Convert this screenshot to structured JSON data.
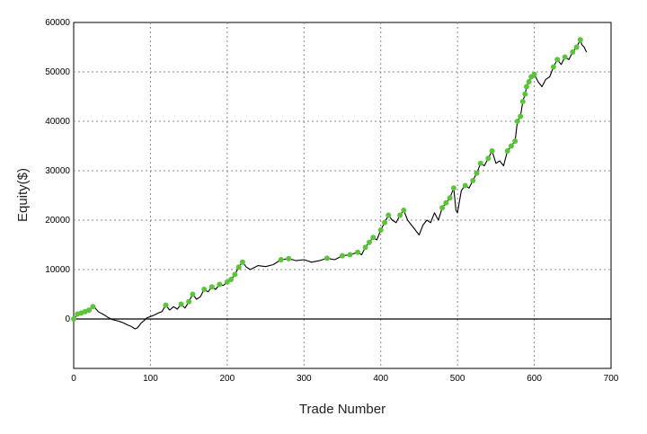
{
  "chart_data": {
    "type": "line",
    "xlabel": "Trade Number",
    "ylabel": "Equity($)",
    "xlim": [
      0,
      700
    ],
    "ylim": [
      -10000,
      60000
    ],
    "xticks": [
      0,
      100,
      200,
      300,
      400,
      500,
      600,
      700
    ],
    "yticks": [
      0,
      10000,
      20000,
      30000,
      40000,
      50000,
      60000
    ],
    "xtick_labels": [
      "0",
      "100",
      "200",
      "300",
      "400",
      "500",
      "600",
      "700"
    ],
    "ytick_labels": [
      "0",
      "10000",
      "20000",
      "30000",
      "40000",
      "50000",
      "60000"
    ],
    "grid": true,
    "zero_line": true,
    "series": [
      {
        "values": [
          [
            0,
            0
          ],
          [
            5,
            1000
          ],
          [
            10,
            1200
          ],
          [
            15,
            1500
          ],
          [
            20,
            1800
          ],
          [
            25,
            2500
          ],
          [
            28,
            2200
          ],
          [
            32,
            1500
          ],
          [
            40,
            800
          ],
          [
            45,
            300
          ],
          [
            50,
            -100
          ],
          [
            55,
            -300
          ],
          [
            60,
            -500
          ],
          [
            65,
            -800
          ],
          [
            70,
            -1200
          ],
          [
            75,
            -1500
          ],
          [
            80,
            -2000
          ],
          [
            83,
            -1800
          ],
          [
            88,
            -800
          ],
          [
            92,
            -300
          ],
          [
            95,
            200
          ],
          [
            100,
            500
          ],
          [
            105,
            800
          ],
          [
            110,
            1200
          ],
          [
            115,
            1500
          ],
          [
            120,
            2800
          ],
          [
            125,
            1800
          ],
          [
            130,
            2500
          ],
          [
            135,
            2000
          ],
          [
            140,
            3000
          ],
          [
            145,
            2200
          ],
          [
            150,
            3500
          ],
          [
            155,
            5000
          ],
          [
            160,
            4000
          ],
          [
            165,
            4500
          ],
          [
            170,
            6000
          ],
          [
            175,
            5500
          ],
          [
            180,
            6500
          ],
          [
            185,
            6000
          ],
          [
            190,
            7000
          ],
          [
            195,
            6800
          ],
          [
            200,
            7500
          ],
          [
            205,
            8000
          ],
          [
            210,
            9000
          ],
          [
            215,
            10500
          ],
          [
            220,
            11500
          ],
          [
            225,
            10500
          ],
          [
            230,
            10000
          ],
          [
            240,
            10800
          ],
          [
            250,
            10600
          ],
          [
            260,
            11000
          ],
          [
            270,
            12000
          ],
          [
            280,
            12200
          ],
          [
            290,
            11800
          ],
          [
            300,
            12000
          ],
          [
            310,
            11500
          ],
          [
            320,
            11800
          ],
          [
            330,
            12300
          ],
          [
            340,
            12000
          ],
          [
            350,
            12800
          ],
          [
            360,
            13000
          ],
          [
            370,
            13500
          ],
          [
            375,
            13000
          ],
          [
            380,
            14500
          ],
          [
            385,
            15500
          ],
          [
            390,
            16500
          ],
          [
            395,
            16000
          ],
          [
            400,
            18000
          ],
          [
            405,
            19500
          ],
          [
            410,
            21000
          ],
          [
            415,
            20000
          ],
          [
            420,
            19500
          ],
          [
            425,
            21000
          ],
          [
            430,
            22000
          ],
          [
            435,
            20000
          ],
          [
            440,
            19000
          ],
          [
            445,
            18000
          ],
          [
            450,
            17000
          ],
          [
            455,
            19000
          ],
          [
            460,
            20000
          ],
          [
            465,
            19500
          ],
          [
            470,
            21500
          ],
          [
            475,
            20000
          ],
          [
            480,
            22500
          ],
          [
            485,
            23500
          ],
          [
            490,
            24500
          ],
          [
            495,
            26500
          ],
          [
            498,
            22000
          ],
          [
            500,
            21500
          ],
          [
            505,
            26000
          ],
          [
            510,
            27000
          ],
          [
            515,
            26500
          ],
          [
            520,
            28000
          ],
          [
            525,
            29500
          ],
          [
            530,
            31500
          ],
          [
            535,
            31000
          ],
          [
            540,
            32500
          ],
          [
            545,
            34000
          ],
          [
            550,
            31500
          ],
          [
            555,
            32000
          ],
          [
            560,
            31000
          ],
          [
            565,
            34000
          ],
          [
            570,
            35000
          ],
          [
            575,
            36000
          ],
          [
            578,
            40000
          ],
          [
            582,
            41000
          ],
          [
            585,
            44000
          ],
          [
            588,
            45500
          ],
          [
            590,
            47000
          ],
          [
            593,
            48000
          ],
          [
            596,
            49000
          ],
          [
            600,
            49500
          ],
          [
            605,
            48000
          ],
          [
            610,
            47000
          ],
          [
            615,
            48500
          ],
          [
            620,
            49000
          ],
          [
            625,
            51000
          ],
          [
            630,
            52500
          ],
          [
            635,
            51500
          ],
          [
            640,
            53000
          ],
          [
            645,
            52500
          ],
          [
            650,
            54000
          ],
          [
            655,
            55000
          ],
          [
            660,
            56500
          ],
          [
            662,
            55500
          ],
          [
            665,
            55000
          ],
          [
            668,
            54000
          ]
        ]
      }
    ],
    "marker_color": "#5cc43a",
    "line_color": "#000000",
    "grid_color": "#888888"
  }
}
